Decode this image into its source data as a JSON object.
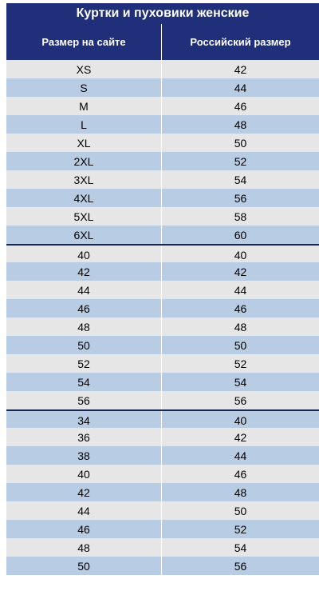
{
  "title": "Куртки и пуховики женские",
  "headers": {
    "site_size": "Размер на сайте",
    "ru_size": "Российский размер"
  },
  "colors": {
    "header_bg": "#1f2f7a",
    "row_light": "#e6e6e6",
    "row_blue": "#b8cce4",
    "group_divider": "#1a2550"
  },
  "rows": [
    {
      "site": "XS",
      "ru": "42"
    },
    {
      "site": "S",
      "ru": "44"
    },
    {
      "site": "M",
      "ru": "46"
    },
    {
      "site": "L",
      "ru": "48"
    },
    {
      "site": "XL",
      "ru": "50"
    },
    {
      "site": "2XL",
      "ru": "52"
    },
    {
      "site": "3XL",
      "ru": "54"
    },
    {
      "site": "4XL",
      "ru": "56"
    },
    {
      "site": "5XL",
      "ru": "58"
    },
    {
      "site": "6XL",
      "ru": "60"
    },
    {
      "site": "40",
      "ru": "40"
    },
    {
      "site": "42",
      "ru": "42"
    },
    {
      "site": "44",
      "ru": "44"
    },
    {
      "site": "46",
      "ru": "46"
    },
    {
      "site": "48",
      "ru": "48"
    },
    {
      "site": "50",
      "ru": "50"
    },
    {
      "site": "52",
      "ru": "52"
    },
    {
      "site": "54",
      "ru": "54"
    },
    {
      "site": "56",
      "ru": "56"
    },
    {
      "site": "34",
      "ru": "40"
    },
    {
      "site": "36",
      "ru": "42"
    },
    {
      "site": "38",
      "ru": "44"
    },
    {
      "site": "40",
      "ru": "46"
    },
    {
      "site": "42",
      "ru": "48"
    },
    {
      "site": "44",
      "ru": "50"
    },
    {
      "site": "46",
      "ru": "52"
    },
    {
      "site": "48",
      "ru": "54"
    },
    {
      "site": "50",
      "ru": "56"
    }
  ]
}
